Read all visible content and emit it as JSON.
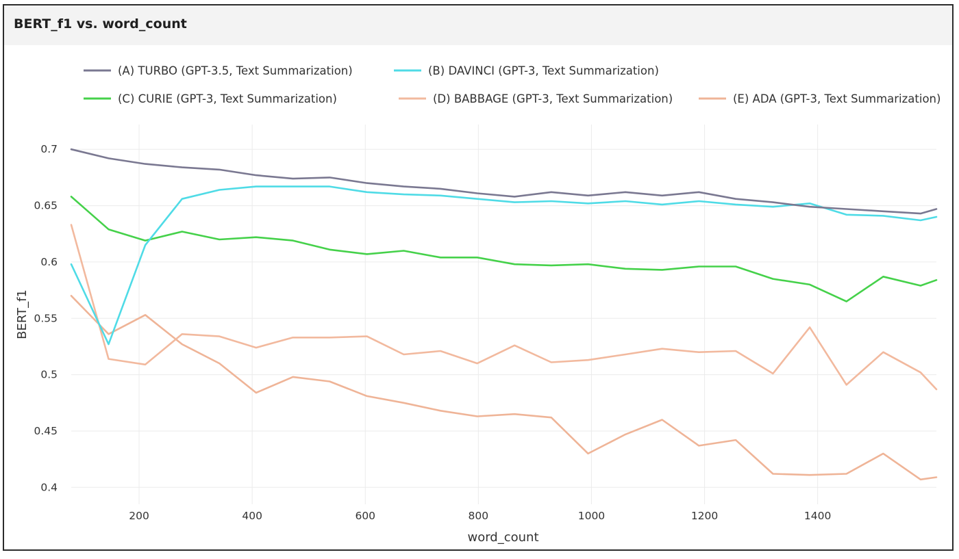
{
  "panel": {
    "title": "BERT_f1 vs. word_count"
  },
  "chart_data": {
    "type": "line",
    "xlabel": "word_count",
    "ylabel": "BERT_f1",
    "xlim": [
      80,
      1610
    ],
    "ylim": [
      0.385,
      0.722
    ],
    "x_ticks": [
      200,
      400,
      600,
      800,
      1000,
      1200,
      1400
    ],
    "x_tick_labels": [
      "200",
      "400",
      "600",
      "800",
      "1000",
      "1200",
      "1400"
    ],
    "y_ticks": [
      0.4,
      0.45,
      0.5,
      0.55,
      0.6,
      0.65,
      0.7
    ],
    "y_tick_labels": [
      "0.4",
      "0.45",
      "0.5",
      "0.55",
      "0.6",
      "0.65",
      "0.7"
    ],
    "grid": true,
    "legend_position": "top",
    "x": [
      80,
      146,
      211,
      276,
      342,
      407,
      472,
      537,
      603,
      668,
      733,
      798,
      864,
      929,
      994,
      1060,
      1125,
      1190,
      1255,
      1321,
      1386,
      1451,
      1516,
      1582,
      1610
    ],
    "series": [
      {
        "name": "(A) TURBO (GPT-3.5, Text Summarization)",
        "color": "#7a7891",
        "values": [
          0.7,
          0.692,
          0.687,
          0.684,
          0.682,
          0.677,
          0.674,
          0.675,
          0.67,
          0.667,
          0.665,
          0.661,
          0.658,
          0.662,
          0.659,
          0.662,
          0.659,
          0.662,
          0.656,
          0.653,
          0.649,
          0.647,
          0.645,
          0.643,
          0.647
        ]
      },
      {
        "name": "(B) DAVINCI (GPT-3, Text Summarization)",
        "color": "#4fdbe6",
        "values": [
          0.598,
          0.527,
          0.615,
          0.656,
          0.664,
          0.667,
          0.667,
          0.667,
          0.662,
          0.66,
          0.659,
          0.656,
          0.653,
          0.654,
          0.652,
          0.654,
          0.651,
          0.654,
          0.651,
          0.649,
          0.652,
          0.642,
          0.641,
          0.637,
          0.64
        ]
      },
      {
        "name": "(C) CURIE (GPT-3, Text Summarization)",
        "color": "#45d14a",
        "values": [
          0.658,
          0.629,
          0.619,
          0.627,
          0.62,
          0.622,
          0.619,
          0.611,
          0.607,
          0.61,
          0.604,
          0.604,
          0.598,
          0.597,
          0.598,
          0.594,
          0.593,
          0.596,
          0.596,
          0.585,
          0.58,
          0.565,
          0.587,
          0.579,
          0.584
        ]
      },
      {
        "name": "(D) BABBAGE (GPT-3, Text Summarization)",
        "color": "#f2b99e",
        "values": [
          0.633,
          0.514,
          0.509,
          0.536,
          0.534,
          0.524,
          0.533,
          0.533,
          0.534,
          0.518,
          0.521,
          0.51,
          0.526,
          0.511,
          0.513,
          0.518,
          0.523,
          0.52,
          0.521,
          0.501,
          0.542,
          0.491,
          0.52,
          0.502,
          0.487
        ]
      },
      {
        "name": "(E) ADA (GPT-3, Text Summarization)",
        "color": "#efb497",
        "values": [
          0.57,
          0.536,
          0.553,
          0.527,
          0.51,
          0.484,
          0.498,
          0.494,
          0.481,
          0.475,
          0.468,
          0.463,
          0.465,
          0.462,
          0.43,
          0.447,
          0.46,
          0.437,
          0.442,
          0.412,
          0.411,
          0.412,
          0.43,
          0.407,
          0.409
        ]
      }
    ]
  }
}
